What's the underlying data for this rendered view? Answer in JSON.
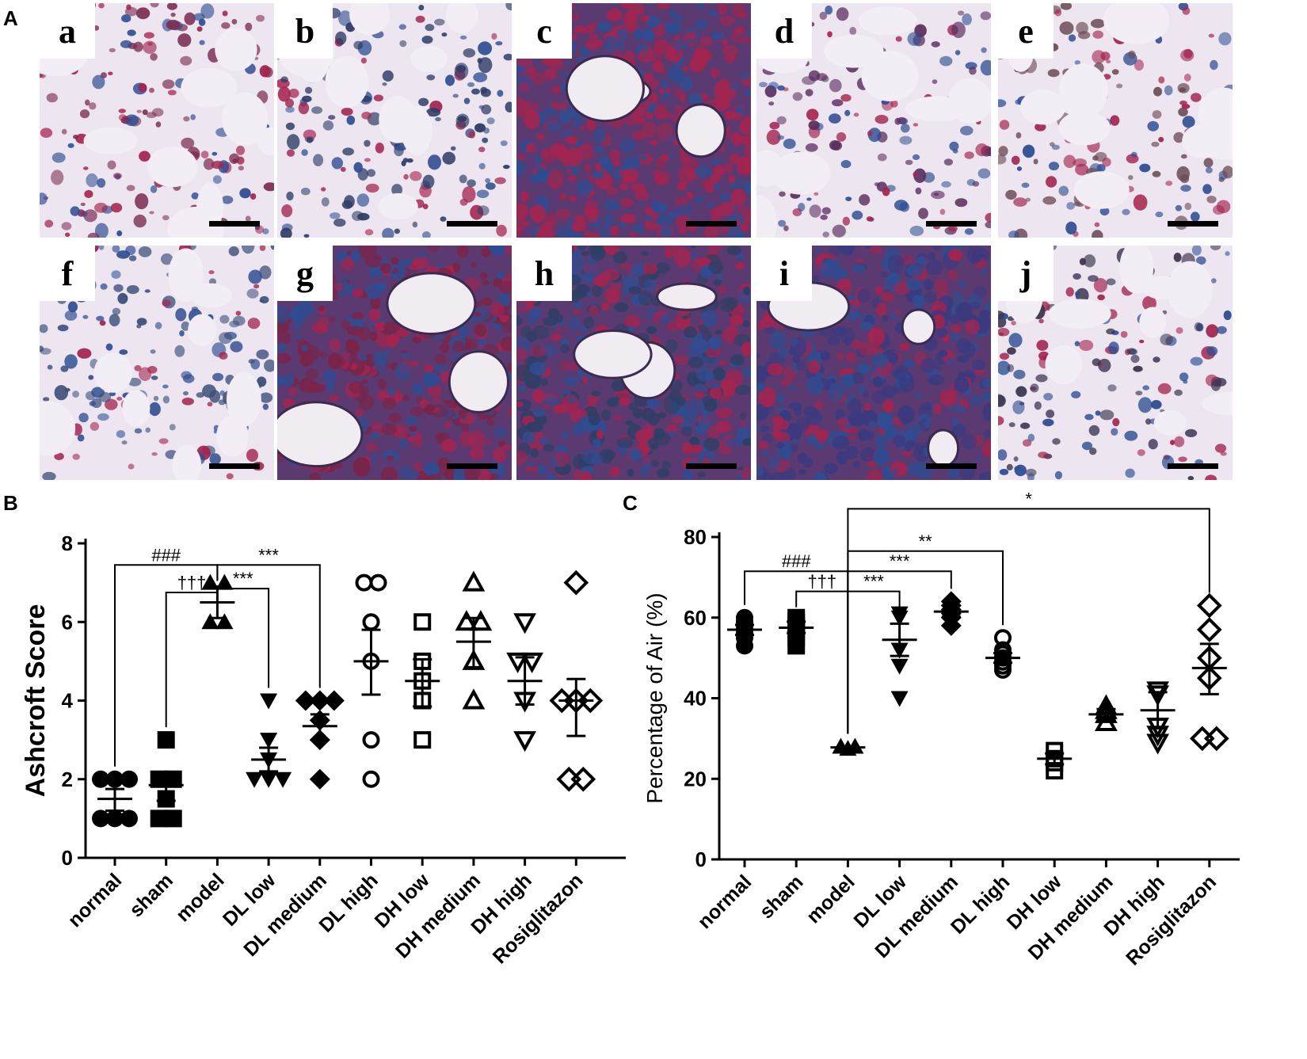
{
  "panels": {
    "A": "A",
    "B": "B",
    "C": "C"
  },
  "images": [
    {
      "label": "a",
      "texture": "sparse",
      "tint": "#7d2e54"
    },
    {
      "label": "b",
      "texture": "sparse",
      "tint": "#2d3b66"
    },
    {
      "label": "c",
      "texture": "dense",
      "tint": "#a3244f"
    },
    {
      "label": "d",
      "texture": "sparse",
      "tint": "#5a2e5e"
    },
    {
      "label": "e",
      "texture": "sparse",
      "tint": "#6a4a55"
    },
    {
      "label": "f",
      "texture": "sparse",
      "tint": "#3d4f7a"
    },
    {
      "label": "g",
      "texture": "dense",
      "tint": "#7a2448"
    },
    {
      "label": "h",
      "texture": "dense",
      "tint": "#2d3f66"
    },
    {
      "label": "i",
      "texture": "dense",
      "tint": "#3a3a80"
    },
    {
      "label": "j",
      "texture": "sparse",
      "tint": "#3b3550"
    }
  ],
  "colors": {
    "ink": "#000000",
    "stain_blue": "#2f4d92",
    "stain_red": "#a3244f",
    "background": "#e9e1ee"
  },
  "chart_data": [
    {
      "type": "scatter",
      "panel": "B",
      "title": "",
      "xlabel": "",
      "ylabel": "Ashcroft Score",
      "ylim": [
        0,
        8
      ],
      "yticks": [
        "0",
        "2",
        "4",
        "6",
        "8"
      ],
      "grid": false,
      "categories": [
        "normal",
        "sham",
        "model",
        "DL low",
        "DL medium",
        "DL high",
        "DH low",
        "DH medium",
        "DH high",
        "Rosiglitazon"
      ],
      "series": [
        {
          "marker": "circle-filled",
          "values": [
            1,
            1,
            1,
            2,
            2,
            2
          ],
          "mean": 1.5,
          "sem_low": 1.2,
          "sem_high": 1.75
        },
        {
          "marker": "square-filled",
          "values": [
            1,
            1,
            1.5,
            2,
            2,
            3
          ],
          "mean": 1.85,
          "sem_low": 1.45,
          "sem_high": 2.1
        },
        {
          "marker": "triangle-filled",
          "values": [
            6,
            6,
            7,
            7
          ],
          "mean": 6.5,
          "sem_low": 6.1,
          "sem_high": 6.9
        },
        {
          "marker": "triangle-down-filled",
          "values": [
            2,
            2,
            2,
            2.5,
            3,
            4
          ],
          "mean": 2.5,
          "sem_low": 2.2,
          "sem_high": 2.8
        },
        {
          "marker": "diamond-filled",
          "values": [
            2,
            3,
            3.5,
            4,
            4,
            4
          ],
          "mean": 3.35,
          "sem_low": 3.0,
          "sem_high": 3.65
        },
        {
          "marker": "circle-open",
          "values": [
            2,
            3,
            5,
            6,
            7,
            7
          ],
          "mean": 5.0,
          "sem_low": 4.15,
          "sem_high": 5.8
        },
        {
          "marker": "square-open",
          "values": [
            3,
            4,
            4.5,
            5,
            6
          ],
          "mean": 4.5,
          "sem_low": 3.85,
          "sem_high": 5.05
        },
        {
          "marker": "triangle-open",
          "values": [
            4,
            5,
            6,
            6,
            7
          ],
          "mean": 5.5,
          "sem_low": 4.85,
          "sem_high": 6.1
        },
        {
          "marker": "triangle-down-open",
          "values": [
            3,
            4,
            5,
            5,
            6
          ],
          "mean": 4.5,
          "sem_low": 3.9,
          "sem_high": 5.1
        },
        {
          "marker": "diamond-open",
          "values": [
            2,
            2,
            4,
            4,
            4,
            7
          ],
          "mean": 4.0,
          "sem_low": 3.1,
          "sem_high": 4.55
        }
      ],
      "annotations": [
        {
          "text": "###",
          "from": 0,
          "to": 2,
          "level": 7.45
        },
        {
          "text": "†††",
          "from": 1,
          "to": 2,
          "level": 6.75
        },
        {
          "text": "***",
          "from": 2,
          "to": 4,
          "level": 7.45
        },
        {
          "text": "***",
          "from": 2,
          "to": 3,
          "level": 6.85
        }
      ]
    },
    {
      "type": "scatter",
      "panel": "C",
      "title": "",
      "xlabel": "",
      "ylabel": "Percentage of Air (%)",
      "ylim": [
        0,
        80
      ],
      "yticks": [
        "0",
        "20",
        "40",
        "60",
        "80"
      ],
      "grid": false,
      "categories": [
        "normal",
        "sham",
        "model",
        "DL low",
        "DL medium",
        "DL high",
        "DH low",
        "DH medium",
        "DH high",
        "Rosiglitazon"
      ],
      "series": [
        {
          "marker": "circle-filled",
          "values": [
            53,
            55,
            56,
            57,
            58,
            59,
            60
          ],
          "mean": 57,
          "sem_low": 55.7,
          "sem_high": 58.2
        },
        {
          "marker": "square-filled",
          "values": [
            53,
            55,
            57,
            58,
            59,
            60
          ],
          "mean": 57.5,
          "sem_low": 56.2,
          "sem_high": 59.0
        },
        {
          "marker": "triangle-filled",
          "values": [
            27.5,
            28,
            28
          ],
          "mean": 27.8,
          "sem_low": 27.6,
          "sem_high": 28.0
        },
        {
          "marker": "triangle-down-filled",
          "values": [
            40,
            48,
            52,
            60,
            61
          ],
          "mean": 54.5,
          "sem_low": 50.5,
          "sem_high": 58.5
        },
        {
          "marker": "diamond-filled",
          "values": [
            58,
            60,
            61,
            62,
            63,
            64
          ],
          "mean": 61.5,
          "sem_low": 60.2,
          "sem_high": 63.0
        },
        {
          "marker": "circle-open",
          "values": [
            47,
            48,
            49,
            50,
            51,
            52,
            55
          ],
          "mean": 50,
          "sem_low": 48.8,
          "sem_high": 51.2
        },
        {
          "marker": "square-open",
          "values": [
            22,
            24,
            25,
            27
          ],
          "mean": 25,
          "sem_low": 23.6,
          "sem_high": 26.3
        },
        {
          "marker": "triangle-open",
          "values": [
            34,
            36,
            37,
            38
          ],
          "mean": 36,
          "sem_low": 34.8,
          "sem_high": 37.3
        },
        {
          "marker": "triangle-down-open",
          "values": [
            29,
            31,
            33,
            41,
            42
          ],
          "mean": 37,
          "sem_low": 32.5,
          "sem_high": 41.5
        },
        {
          "marker": "diamond-open",
          "values": [
            30,
            30,
            45,
            50,
            57,
            63
          ],
          "mean": 47.5,
          "sem_low": 41.0,
          "sem_high": 53.5
        }
      ],
      "annotations": [
        {
          "text": "###",
          "from": 0,
          "to": 2,
          "level": 71.5
        },
        {
          "text": "†††",
          "from": 1,
          "to": 2,
          "level": 66.5
        },
        {
          "text": "***",
          "from": 2,
          "to": 3,
          "level": 66.5
        },
        {
          "text": "***",
          "from": 2,
          "to": 4,
          "level": 71.5
        },
        {
          "text": "**",
          "from": 2,
          "to": 5,
          "level": 76.5
        },
        {
          "text": "*",
          "from": 2,
          "to": 9,
          "level": 87
        }
      ]
    }
  ]
}
